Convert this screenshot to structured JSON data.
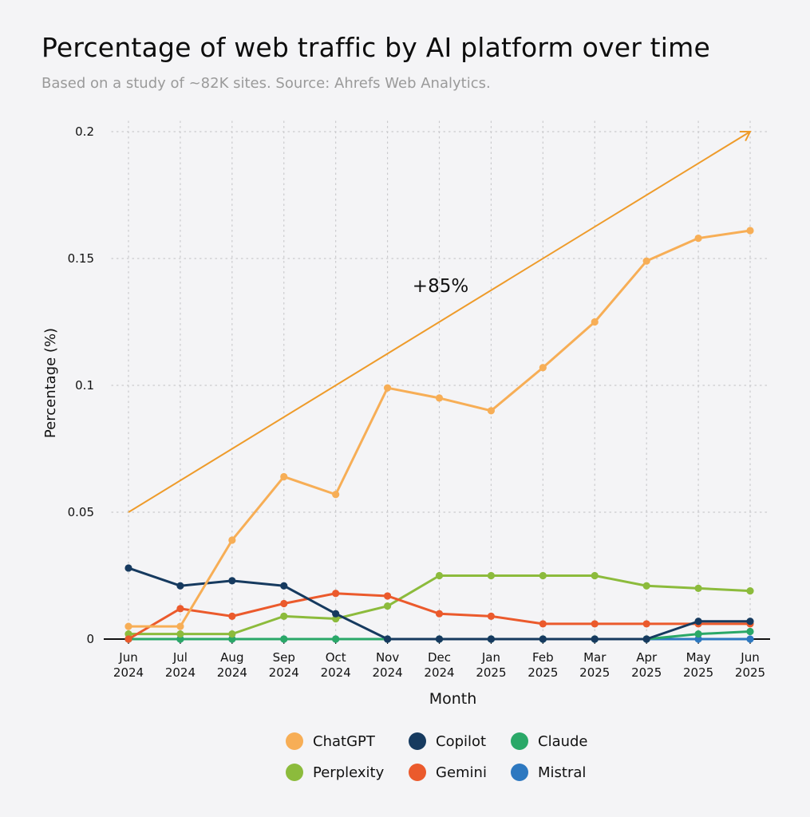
{
  "title": "Percentage of web traffic by AI platform over time",
  "subtitle": "Based on a study of ~82K sites. Source: Ahrefs Web Analytics.",
  "chart_data": {
    "type": "line",
    "xlabel": "Month",
    "ylabel": "Percentage (%)",
    "ylim": [
      0,
      0.2
    ],
    "y_ticks": [
      "0",
      "0.05",
      "0.1",
      "0.15",
      "0.2"
    ],
    "y_tick_values": [
      0,
      0.05,
      0.1,
      0.15,
      0.2
    ],
    "grid": true,
    "legend_position": "bottom",
    "categories": [
      [
        "Jun",
        "2024"
      ],
      [
        "Jul",
        "2024"
      ],
      [
        "Aug",
        "2024"
      ],
      [
        "Sep",
        "2024"
      ],
      [
        "Oct",
        "2024"
      ],
      [
        "Nov",
        "2024"
      ],
      [
        "Dec",
        "2024"
      ],
      [
        "Jan",
        "2025"
      ],
      [
        "Feb",
        "2025"
      ],
      [
        "Mar",
        "2025"
      ],
      [
        "Apr",
        "2025"
      ],
      [
        "May",
        "2025"
      ],
      [
        "Jun",
        "2025"
      ]
    ],
    "series": [
      {
        "name": "ChatGPT",
        "color": "#f7ae56",
        "values": [
          0.005,
          0.005,
          0.039,
          0.064,
          0.057,
          0.099,
          0.095,
          0.09,
          0.107,
          0.125,
          0.149,
          0.158,
          0.161
        ]
      },
      {
        "name": "Copilot",
        "color": "#163a5f",
        "values": [
          0.028,
          0.021,
          0.023,
          0.021,
          0.01,
          0.0,
          0.0,
          0.0,
          0.0,
          0.0,
          0.0,
          0.007,
          0.007
        ]
      },
      {
        "name": "Claude",
        "color": "#2aa868",
        "values": [
          0.0,
          0.0,
          0.0,
          0.0,
          0.0,
          0.0,
          0.0,
          0.0,
          0.0,
          0.0,
          0.0,
          0.002,
          0.003
        ]
      },
      {
        "name": "Perplexity",
        "color": "#8cbb3c",
        "values": [
          0.002,
          0.002,
          0.002,
          0.009,
          0.008,
          0.013,
          0.025,
          0.025,
          0.025,
          0.025,
          0.021,
          0.02,
          0.019
        ]
      },
      {
        "name": "Gemini",
        "color": "#eb5a2c",
        "values": [
          0.0,
          0.012,
          0.009,
          0.014,
          0.018,
          0.017,
          0.01,
          0.009,
          0.006,
          0.006,
          0.006,
          0.006,
          0.006
        ]
      },
      {
        "name": "Mistral",
        "color": "#2d78c0",
        "values": [
          0.0,
          0.0,
          0.0,
          0.0,
          0.0,
          0.0,
          0.0,
          0.0,
          0.0,
          0.0,
          0.0,
          0.0,
          0.0
        ]
      }
    ],
    "annotation": {
      "label": "+85%",
      "color": "#ee9b2a",
      "from": {
        "x_index": 0,
        "y": 0.05
      },
      "to": {
        "x_index": 12,
        "y": 0.2
      }
    }
  }
}
